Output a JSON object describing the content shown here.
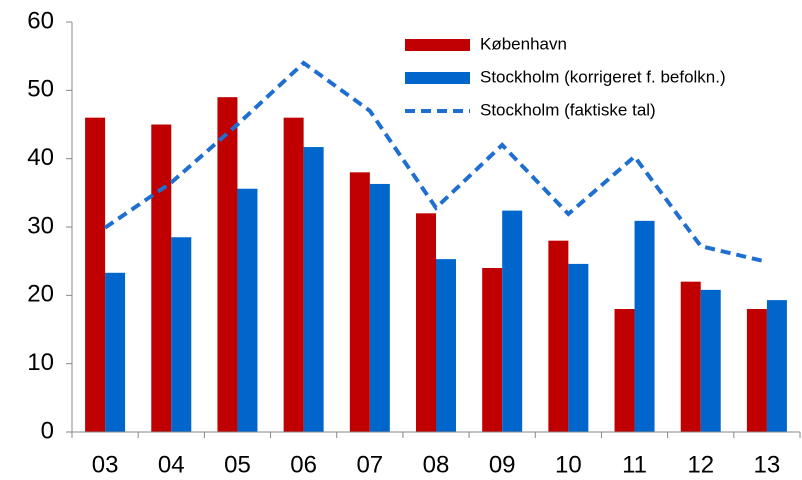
{
  "chart_data": {
    "type": "bar",
    "categories": [
      "03",
      "04",
      "05",
      "06",
      "07",
      "08",
      "09",
      "10",
      "11",
      "12",
      "13"
    ],
    "series": [
      {
        "name": "København",
        "color": "#c00000",
        "type": "bar",
        "values": [
          46,
          45,
          49,
          46,
          38,
          32,
          24,
          28,
          18,
          22,
          18
        ]
      },
      {
        "name": "Stockholm (korrigeret f. befolkn.)",
        "color": "#0066cc",
        "type": "bar",
        "values": [
          23.3,
          28.5,
          35.6,
          41.7,
          36.3,
          25.3,
          32.4,
          24.6,
          30.9,
          20.8,
          19.3
        ]
      },
      {
        "name": "Stockholm (faktiske tal)",
        "color": "#1f6fd1",
        "type": "line",
        "dashed": true,
        "values": [
          29.9,
          36.5,
          45,
          54,
          47,
          32.8,
          42,
          31.9,
          40.3,
          27.2,
          24.9
        ]
      }
    ],
    "ylim": [
      0,
      60
    ],
    "yticks": [
      0,
      10,
      20,
      30,
      40,
      50,
      60
    ],
    "grid": false
  }
}
